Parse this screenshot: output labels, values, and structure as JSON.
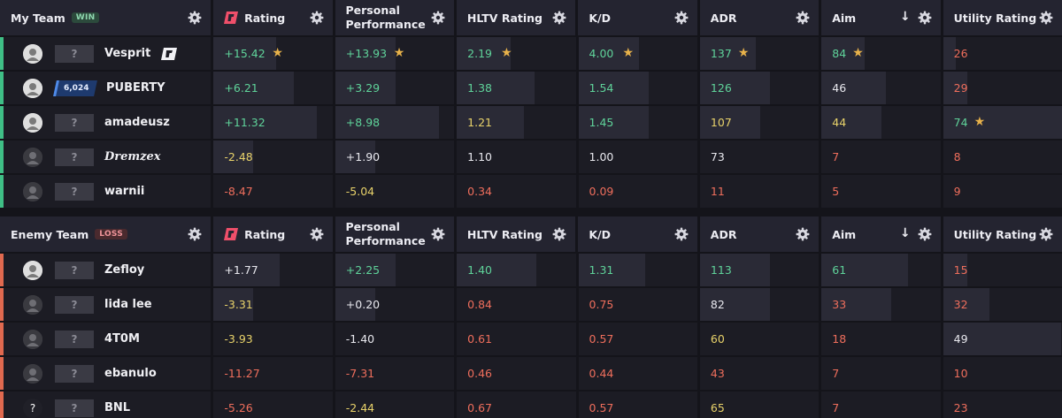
{
  "columns": [
    {
      "key": "rating",
      "label": "Rating",
      "logo": true
    },
    {
      "key": "personal",
      "label": "Personal Performance",
      "two_line": [
        "Personal",
        "Performance"
      ]
    },
    {
      "key": "hltv",
      "label": "HLTV Rating"
    },
    {
      "key": "kd",
      "label": "K/D"
    },
    {
      "key": "adr",
      "label": "ADR"
    },
    {
      "key": "aim",
      "label": "Aim",
      "sort_icon": "arrow-down-icon"
    },
    {
      "key": "utility",
      "label": "Utility Rating"
    }
  ],
  "colors": {
    "win": "#3fbf86",
    "loss": "#e0694f",
    "good": "#5fd39a",
    "mid": "#e8d26a",
    "bad": "#ef6e5c"
  },
  "teams": [
    {
      "name": "My Team",
      "result": "WIN",
      "side_color": "#3fbf86",
      "players": [
        {
          "name": "Vesprit",
          "avatar": "light",
          "rank": "?",
          "has_logo_tag": true,
          "stats": [
            {
              "v": "+15.42",
              "c": "good",
              "star": true,
              "fill": 0.52
            },
            {
              "v": "+13.93",
              "c": "good",
              "star": true,
              "fill": 0.5
            },
            {
              "v": "2.19",
              "c": "good",
              "star": true,
              "fill": 0.45
            },
            {
              "v": "4.00",
              "c": "good",
              "star": true,
              "fill": 0.5
            },
            {
              "v": "137",
              "c": "good",
              "star": true,
              "fill": 0.46
            },
            {
              "v": "84",
              "c": "good",
              "star": true,
              "fill": 0.36
            },
            {
              "v": "26",
              "c": "bad",
              "star": false,
              "fill": 0.1
            }
          ]
        },
        {
          "name": "PUBERTY",
          "avatar": "light",
          "rank": "?",
          "elo": "6,024",
          "stats": [
            {
              "v": "+6.21",
              "c": "good",
              "star": false,
              "fill": 0.67
            },
            {
              "v": "+3.29",
              "c": "good",
              "star": false,
              "fill": 0.5
            },
            {
              "v": "1.38",
              "c": "good",
              "star": false,
              "fill": 0.65
            },
            {
              "v": "1.54",
              "c": "good",
              "star": false,
              "fill": 0.58
            },
            {
              "v": "126",
              "c": "good",
              "star": false,
              "fill": 0.58
            },
            {
              "v": "46",
              "c": "neu",
              "star": false,
              "fill": 0.54
            },
            {
              "v": "29",
              "c": "bad",
              "star": false,
              "fill": 0.2
            }
          ]
        },
        {
          "name": "amadeusz",
          "avatar": "light",
          "rank": "?",
          "stats": [
            {
              "v": "+11.32",
              "c": "good",
              "star": false,
              "fill": 0.86
            },
            {
              "v": "+8.98",
              "c": "good",
              "star": false,
              "fill": 0.86
            },
            {
              "v": "1.21",
              "c": "mid",
              "star": false,
              "fill": 0.56
            },
            {
              "v": "1.45",
              "c": "good",
              "star": false,
              "fill": 0.58
            },
            {
              "v": "107",
              "c": "mid",
              "star": false,
              "fill": 0.5
            },
            {
              "v": "44",
              "c": "mid",
              "star": false,
              "fill": 0.5
            },
            {
              "v": "74",
              "c": "good",
              "star": true,
              "fill": 1.0
            }
          ]
        },
        {
          "name": "Dremzex",
          "avatar": "dark",
          "rank": "?",
          "script": true,
          "stats": [
            {
              "v": "-2.48",
              "c": "mid",
              "star": false,
              "fill": 0.33
            },
            {
              "v": "+1.90",
              "c": "neu",
              "star": false,
              "fill": 0.33
            },
            {
              "v": "1.10",
              "c": "neu",
              "star": false,
              "fill": 0.0
            },
            {
              "v": "1.00",
              "c": "neu",
              "star": false,
              "fill": 0.0
            },
            {
              "v": "73",
              "c": "neu",
              "star": false,
              "fill": 0.0
            },
            {
              "v": "7",
              "c": "bad",
              "star": false,
              "fill": 0.0
            },
            {
              "v": "8",
              "c": "bad",
              "star": false,
              "fill": 0.0
            }
          ]
        },
        {
          "name": "warnii",
          "avatar": "dark",
          "rank": "?",
          "stats": [
            {
              "v": "-8.47",
              "c": "bad",
              "star": false,
              "fill": 0.0
            },
            {
              "v": "-5.04",
              "c": "mid",
              "star": false,
              "fill": 0.0
            },
            {
              "v": "0.34",
              "c": "bad",
              "star": false,
              "fill": 0.0
            },
            {
              "v": "0.09",
              "c": "bad",
              "star": false,
              "fill": 0.0
            },
            {
              "v": "11",
              "c": "bad",
              "star": false,
              "fill": 0.0
            },
            {
              "v": "5",
              "c": "bad",
              "star": false,
              "fill": 0.0
            },
            {
              "v": "9",
              "c": "bad",
              "star": false,
              "fill": 0.0
            }
          ]
        }
      ]
    },
    {
      "name": "Enemy Team",
      "result": "LOSS",
      "side_color": "#e0694f",
      "players": [
        {
          "name": "Zefloy",
          "avatar": "light",
          "rank": "?",
          "stats": [
            {
              "v": "+1.77",
              "c": "neu",
              "star": false,
              "fill": 0.55
            },
            {
              "v": "+2.25",
              "c": "good",
              "star": false,
              "fill": 0.5
            },
            {
              "v": "1.40",
              "c": "good",
              "star": false,
              "fill": 0.66
            },
            {
              "v": "1.31",
              "c": "good",
              "star": false,
              "fill": 0.55
            },
            {
              "v": "113",
              "c": "good",
              "star": false,
              "fill": 0.58
            },
            {
              "v": "61",
              "c": "good",
              "star": false,
              "fill": 0.72
            },
            {
              "v": "15",
              "c": "bad",
              "star": false,
              "fill": 0.2
            }
          ]
        },
        {
          "name": "lida lee",
          "avatar": "dark",
          "rank": "?",
          "stats": [
            {
              "v": "-3.31",
              "c": "mid",
              "star": false,
              "fill": 0.33
            },
            {
              "v": "+0.20",
              "c": "neu",
              "star": false,
              "fill": 0.33
            },
            {
              "v": "0.84",
              "c": "bad",
              "star": false,
              "fill": 0.0
            },
            {
              "v": "0.75",
              "c": "bad",
              "star": false,
              "fill": 0.0
            },
            {
              "v": "82",
              "c": "neu",
              "star": false,
              "fill": 0.58
            },
            {
              "v": "33",
              "c": "bad",
              "star": false,
              "fill": 0.58
            },
            {
              "v": "32",
              "c": "bad",
              "star": false,
              "fill": 0.38
            }
          ]
        },
        {
          "name": "4T0M",
          "avatar": "dark",
          "rank": "?",
          "stats": [
            {
              "v": "-3.93",
              "c": "mid",
              "star": false,
              "fill": 0.0
            },
            {
              "v": "-1.40",
              "c": "neu",
              "star": false,
              "fill": 0.0
            },
            {
              "v": "0.61",
              "c": "bad",
              "star": false,
              "fill": 0.0
            },
            {
              "v": "0.57",
              "c": "bad",
              "star": false,
              "fill": 0.0
            },
            {
              "v": "60",
              "c": "mid",
              "star": false,
              "fill": 0.0
            },
            {
              "v": "18",
              "c": "bad",
              "star": false,
              "fill": 0.0
            },
            {
              "v": "49",
              "c": "neu",
              "star": false,
              "fill": 0.98
            }
          ]
        },
        {
          "name": "ebanulo",
          "avatar": "dark",
          "rank": "?",
          "stats": [
            {
              "v": "-11.27",
              "c": "bad",
              "star": false,
              "fill": 0.0
            },
            {
              "v": "-7.31",
              "c": "bad",
              "star": false,
              "fill": 0.0
            },
            {
              "v": "0.46",
              "c": "bad",
              "star": false,
              "fill": 0.0
            },
            {
              "v": "0.44",
              "c": "bad",
              "star": false,
              "fill": 0.0
            },
            {
              "v": "43",
              "c": "bad",
              "star": false,
              "fill": 0.0
            },
            {
              "v": "7",
              "c": "bad",
              "star": false,
              "fill": 0.0
            },
            {
              "v": "10",
              "c": "bad",
              "star": false,
              "fill": 0.0
            }
          ]
        },
        {
          "name": "BNL",
          "avatar": "q",
          "rank": "?",
          "stats": [
            {
              "v": "-5.26",
              "c": "bad",
              "star": false,
              "fill": 0.0
            },
            {
              "v": "-2.44",
              "c": "mid",
              "star": false,
              "fill": 0.0
            },
            {
              "v": "0.67",
              "c": "bad",
              "star": false,
              "fill": 0.0
            },
            {
              "v": "0.57",
              "c": "bad",
              "star": false,
              "fill": 0.0
            },
            {
              "v": "65",
              "c": "mid",
              "star": false,
              "fill": 0.0
            },
            {
              "v": "7",
              "c": "bad",
              "star": false,
              "fill": 0.0
            },
            {
              "v": "23",
              "c": "bad",
              "star": false,
              "fill": 0.0
            }
          ]
        }
      ]
    }
  ]
}
